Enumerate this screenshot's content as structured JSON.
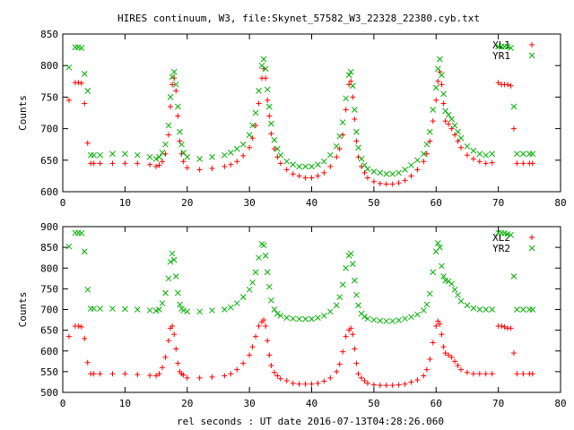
{
  "title": "HIRES continuum, W3, file:Skynet_57582_W3_22328_22380.cyb.txt",
  "xlabel": "rel seconds : UT date 2016-07-13T04:28:26.060",
  "colors": {
    "red": "#ff0000",
    "green": "#00b000",
    "axes": "#000000"
  },
  "chart_data": [
    {
      "type": "scatter",
      "title": "HIRES continuum, W3, file:Skynet_57582_W3_22328_22380.cyb.txt",
      "xlabel": "",
      "ylabel": "Counts",
      "xlim": [
        0,
        80
      ],
      "ylim": [
        600,
        850
      ],
      "xticks": [
        0,
        10,
        20,
        30,
        40,
        50,
        60,
        70,
        80
      ],
      "yticks": [
        600,
        650,
        700,
        750,
        800,
        850
      ],
      "grid": false,
      "legend_position": "top-right",
      "series": [
        {
          "name": "XL1",
          "marker": "plus",
          "color": "#ff0000",
          "x": [
            1,
            2,
            2.5,
            3,
            3.5,
            4,
            4.5,
            5,
            6,
            8,
            10,
            12,
            14,
            15,
            15.5,
            16,
            16.5,
            17,
            17.3,
            17.6,
            17.9,
            18.2,
            18.5,
            18.8,
            19.1,
            19.4,
            20,
            22,
            24,
            26,
            27,
            28,
            29,
            30,
            30.5,
            31,
            31.5,
            32,
            32.3,
            32.6,
            32.9,
            33.2,
            33.5,
            34,
            34.5,
            35,
            36,
            37,
            38,
            39,
            40,
            41,
            42,
            43,
            44,
            44.5,
            45,
            45.5,
            46,
            46.3,
            46.6,
            46.9,
            47.2,
            47.5,
            48,
            48.5,
            49,
            50,
            51,
            52,
            53,
            54,
            55,
            56,
            57,
            58,
            58.5,
            59,
            59.5,
            60,
            60.3,
            60.6,
            60.9,
            61.2,
            61.5,
            62,
            62.5,
            63,
            63.5,
            64,
            65,
            66,
            67,
            68,
            69,
            70,
            70.5,
            71,
            71.5,
            72,
            72.5,
            73,
            74,
            75,
            75.5
          ],
          "y": [
            745,
            773,
            773,
            772,
            740,
            677,
            645,
            645,
            645,
            645,
            645,
            645,
            643,
            640,
            642,
            648,
            660,
            690,
            735,
            770,
            780,
            760,
            720,
            680,
            660,
            648,
            638,
            635,
            637,
            640,
            643,
            648,
            657,
            670,
            685,
            705,
            740,
            780,
            795,
            780,
            745,
            720,
            692,
            668,
            655,
            645,
            635,
            628,
            625,
            622,
            622,
            625,
            630,
            640,
            655,
            668,
            690,
            730,
            770,
            775,
            750,
            715,
            680,
            655,
            640,
            630,
            622,
            616,
            613,
            612,
            612,
            614,
            618,
            625,
            635,
            648,
            660,
            680,
            712,
            745,
            775,
            790,
            770,
            740,
            712,
            707,
            700,
            690,
            680,
            670,
            658,
            652,
            648,
            645,
            646,
            773,
            770,
            770,
            770,
            768,
            700,
            645,
            645,
            645,
            645
          ]
        },
        {
          "name": "YR1",
          "marker": "cross",
          "color": "#00b000",
          "x": [
            1,
            2,
            2.5,
            3,
            3.5,
            4,
            4.5,
            5,
            6,
            8,
            10,
            12,
            14,
            15,
            15.5,
            16,
            16.5,
            17,
            17.3,
            17.6,
            17.9,
            18.2,
            18.5,
            18.8,
            19.1,
            19.4,
            20,
            22,
            24,
            26,
            27,
            28,
            29,
            30,
            30.5,
            31,
            31.5,
            32,
            32.3,
            32.6,
            32.9,
            33.2,
            33.5,
            34,
            34.5,
            35,
            36,
            37,
            38,
            39,
            40,
            41,
            42,
            43,
            44,
            44.5,
            45,
            45.5,
            46,
            46.3,
            46.6,
            46.9,
            47.2,
            47.5,
            48,
            48.5,
            49,
            50,
            51,
            52,
            53,
            54,
            55,
            56,
            57,
            58,
            58.5,
            59,
            59.5,
            60,
            60.3,
            60.6,
            60.9,
            61.2,
            61.5,
            62,
            62.5,
            63,
            63.5,
            64,
            65,
            66,
            67,
            68,
            69,
            70,
            70.5,
            71,
            71.5,
            72,
            72.5,
            73,
            74,
            75,
            75.5
          ],
          "y": [
            797,
            829,
            829,
            828,
            787,
            760,
            658,
            658,
            658,
            660,
            660,
            658,
            655,
            652,
            655,
            662,
            675,
            705,
            750,
            782,
            790,
            770,
            735,
            695,
            675,
            662,
            655,
            652,
            655,
            658,
            662,
            668,
            675,
            690,
            705,
            725,
            760,
            800,
            810,
            795,
            762,
            735,
            708,
            682,
            668,
            658,
            648,
            643,
            640,
            640,
            640,
            643,
            648,
            658,
            672,
            688,
            710,
            748,
            785,
            790,
            768,
            730,
            695,
            670,
            652,
            642,
            636,
            632,
            630,
            628,
            628,
            630,
            635,
            642,
            650,
            660,
            675,
            695,
            730,
            765,
            795,
            810,
            785,
            755,
            728,
            722,
            715,
            705,
            695,
            685,
            672,
            665,
            660,
            658,
            660,
            830,
            830,
            830,
            830,
            828,
            735,
            660,
            660,
            660,
            660
          ]
        }
      ]
    },
    {
      "type": "scatter",
      "title": "",
      "xlabel": "rel seconds : UT date 2016-07-13T04:28:26.060",
      "ylabel": "Counts",
      "xlim": [
        0,
        80
      ],
      "ylim": [
        500,
        900
      ],
      "xticks": [
        0,
        10,
        20,
        30,
        40,
        50,
        60,
        70,
        80
      ],
      "yticks": [
        500,
        550,
        600,
        650,
        700,
        750,
        800,
        850,
        900
      ],
      "grid": false,
      "legend_position": "top-right",
      "series": [
        {
          "name": "XL2",
          "marker": "plus",
          "color": "#ff0000",
          "x": [
            1,
            2,
            2.5,
            3,
            3.5,
            4,
            4.5,
            5,
            6,
            8,
            10,
            12,
            14,
            15,
            15.5,
            16,
            16.5,
            17,
            17.3,
            17.6,
            17.9,
            18.2,
            18.5,
            18.8,
            19.1,
            19.4,
            20,
            22,
            24,
            26,
            27,
            28,
            29,
            30,
            30.5,
            31,
            31.5,
            32,
            32.3,
            32.6,
            32.9,
            33.2,
            33.5,
            34,
            34.5,
            35,
            36,
            37,
            38,
            39,
            40,
            41,
            42,
            43,
            44,
            44.5,
            45,
            45.5,
            46,
            46.3,
            46.6,
            46.9,
            47.2,
            47.5,
            48,
            48.5,
            49,
            50,
            51,
            52,
            53,
            54,
            55,
            56,
            57,
            58,
            58.5,
            59,
            59.5,
            60,
            60.3,
            60.6,
            60.9,
            61.2,
            61.5,
            62,
            62.5,
            63,
            63.5,
            64,
            65,
            66,
            67,
            68,
            69,
            70,
            70.5,
            71,
            71.5,
            72,
            72.5,
            73,
            74,
            75,
            75.5
          ],
          "y": [
            635,
            660,
            660,
            658,
            630,
            572,
            545,
            545,
            545,
            545,
            545,
            543,
            541,
            540,
            545,
            560,
            585,
            625,
            655,
            660,
            640,
            605,
            570,
            550,
            545,
            542,
            535,
            535,
            537,
            540,
            545,
            555,
            570,
            590,
            610,
            635,
            660,
            670,
            675,
            660,
            625,
            590,
            565,
            548,
            540,
            533,
            528,
            522,
            520,
            520,
            520,
            522,
            527,
            535,
            550,
            568,
            598,
            635,
            650,
            655,
            640,
            605,
            570,
            545,
            535,
            528,
            522,
            518,
            517,
            517,
            517,
            518,
            520,
            525,
            530,
            540,
            555,
            580,
            620,
            660,
            672,
            665,
            640,
            610,
            595,
            590,
            585,
            575,
            565,
            555,
            548,
            545,
            545,
            545,
            545,
            660,
            660,
            658,
            655,
            655,
            595,
            545,
            545,
            545,
            545
          ]
        },
        {
          "name": "YR2",
          "marker": "cross",
          "color": "#00b000",
          "x": [
            1,
            2,
            2.5,
            3,
            3.5,
            4,
            4.5,
            5,
            6,
            8,
            10,
            12,
            14,
            15,
            15.5,
            16,
            16.5,
            17,
            17.3,
            17.6,
            17.9,
            18.2,
            18.5,
            18.8,
            19.1,
            19.4,
            20,
            22,
            24,
            26,
            27,
            28,
            29,
            30,
            30.5,
            31,
            31.5,
            32,
            32.3,
            32.6,
            32.9,
            33.2,
            33.5,
            34,
            34.5,
            35,
            36,
            37,
            38,
            39,
            40,
            41,
            42,
            43,
            44,
            44.5,
            45,
            45.5,
            46,
            46.3,
            46.6,
            46.9,
            47.2,
            47.5,
            48,
            48.5,
            49,
            50,
            51,
            52,
            53,
            54,
            55,
            56,
            57,
            58,
            58.5,
            59,
            59.5,
            60,
            60.3,
            60.6,
            60.9,
            61.2,
            61.5,
            62,
            62.5,
            63,
            63.5,
            64,
            65,
            66,
            67,
            68,
            69,
            70,
            70.5,
            71,
            71.5,
            72,
            72.5,
            73,
            74,
            75,
            75.5
          ],
          "y": [
            852,
            885,
            885,
            884,
            840,
            748,
            702,
            702,
            702,
            702,
            701,
            700,
            698,
            697,
            700,
            715,
            740,
            775,
            815,
            835,
            820,
            780,
            740,
            712,
            702,
            698,
            695,
            695,
            698,
            700,
            705,
            715,
            730,
            748,
            765,
            790,
            825,
            858,
            855,
            830,
            790,
            755,
            722,
            700,
            690,
            685,
            680,
            678,
            677,
            677,
            677,
            680,
            685,
            695,
            710,
            730,
            760,
            800,
            830,
            835,
            810,
            770,
            735,
            710,
            690,
            683,
            678,
            675,
            673,
            672,
            672,
            674,
            678,
            682,
            688,
            698,
            712,
            738,
            790,
            840,
            860,
            850,
            805,
            780,
            770,
            768,
            762,
            748,
            735,
            720,
            710,
            703,
            700,
            700,
            700,
            885,
            885,
            884,
            882,
            880,
            780,
            700,
            700,
            700,
            700
          ]
        }
      ]
    }
  ]
}
